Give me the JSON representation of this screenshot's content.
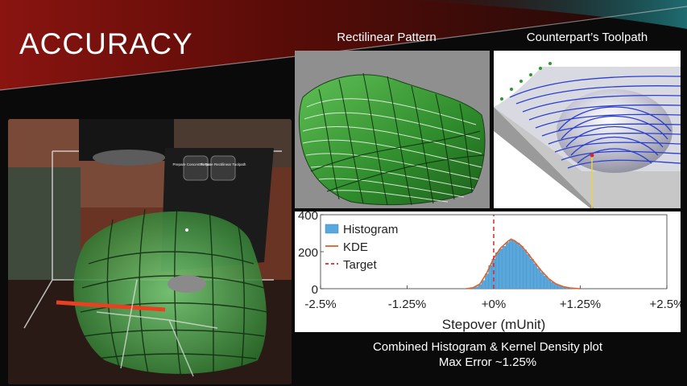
{
  "slide": {
    "title": "ACCURACY",
    "rect_caption": "Rectilinear Pattern",
    "tool_caption": "Counterpart’s Toolpath",
    "bottom_caption_line1": "Combined Histogram & Kernel Density plot",
    "bottom_caption_line2": "Max Error ~1.25%"
  },
  "photo": {
    "button1_label": "Prepare Concentric Toolpath",
    "button2_label": "Prepare Rectilinear Toolpath"
  },
  "colors": {
    "histogram": "#5aa7dc",
    "kde": "#e0612a",
    "target": "#d62728",
    "surface_green": "#3fa83b",
    "toolpath_blue": "#2a3fd0"
  },
  "chart_data": {
    "type": "bar",
    "xlabel": "Stepover (mUnit)",
    "ylabel": "",
    "x_ticks": [
      "-2.5%",
      "-1.25%",
      "+0%",
      "+1.25%",
      "+2.5%"
    ],
    "xlim": [
      -2.5,
      2.5
    ],
    "y_ticks": [
      "0",
      "200",
      "400"
    ],
    "ylim": [
      0,
      400
    ],
    "legend_position": "top-left",
    "target_x": 0.0,
    "series": [
      {
        "name": "Histogram",
        "kind": "histogram",
        "x": [
          -0.3,
          -0.25,
          -0.2,
          -0.15,
          -0.1,
          -0.05,
          0.0,
          0.05,
          0.1,
          0.15,
          0.2,
          0.25,
          0.3,
          0.35,
          0.4,
          0.45,
          0.5,
          0.55,
          0.6,
          0.65,
          0.7,
          0.75,
          0.8,
          0.85,
          0.9,
          0.95,
          1.0,
          1.05,
          1.1,
          1.15,
          1.2
        ],
        "values": [
          4,
          10,
          22,
          45,
          80,
          125,
          160,
          195,
          215,
          230,
          250,
          262,
          258,
          248,
          230,
          210,
          185,
          160,
          135,
          110,
          88,
          68,
          50,
          35,
          24,
          16,
          10,
          6,
          4,
          2,
          1
        ]
      },
      {
        "name": "KDE",
        "kind": "line",
        "x": [
          -0.4,
          -0.3,
          -0.2,
          -0.1,
          0.0,
          0.1,
          0.2,
          0.25,
          0.3,
          0.4,
          0.5,
          0.6,
          0.7,
          0.8,
          0.9,
          1.0,
          1.1,
          1.25
        ],
        "values": [
          0,
          5,
          25,
          85,
          165,
          220,
          255,
          268,
          260,
          232,
          188,
          138,
          92,
          52,
          26,
          12,
          4,
          0
        ]
      },
      {
        "name": "Target",
        "kind": "vline",
        "x": [
          0.0,
          0.0
        ],
        "values": [
          0,
          400
        ]
      }
    ]
  }
}
